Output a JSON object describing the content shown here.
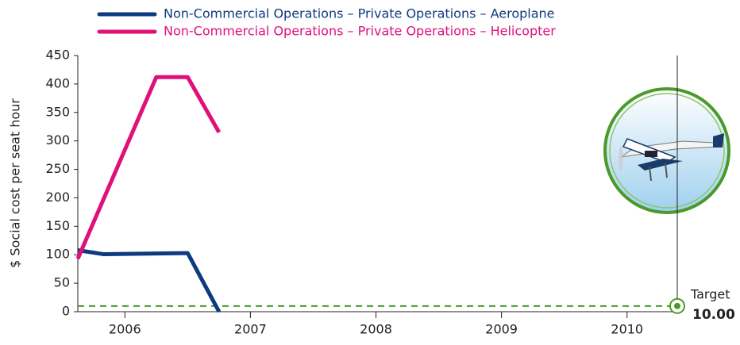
{
  "chart_data": {
    "type": "line",
    "y_label": "$ Social cost per seat hour",
    "xlim": [
      2005.625,
      2010.4
    ],
    "xticks": [
      2006,
      2007,
      2008,
      2009,
      2010
    ],
    "ylim": [
      0,
      450
    ],
    "yticks": [
      0,
      50,
      100,
      150,
      200,
      250,
      300,
      350,
      400,
      450
    ],
    "series": [
      {
        "name": "Non-Commercial Operations – Private Operations – Aeroplane",
        "color": "#0d3a80",
        "x": [
          2005.625,
          2005.83,
          2006.5,
          2006.75
        ],
        "values": [
          108,
          101,
          103,
          0
        ]
      },
      {
        "name": "Non-Commercial Operations – Private Operations – Helicopter",
        "color": "#e0107a",
        "x": [
          2005.625,
          2006.25,
          2006.5,
          2006.75
        ],
        "values": [
          93,
          412,
          412,
          315
        ]
      }
    ],
    "target": {
      "title": "Target",
      "value": 10,
      "label": "10.00",
      "color": "#4a9a2a"
    }
  }
}
